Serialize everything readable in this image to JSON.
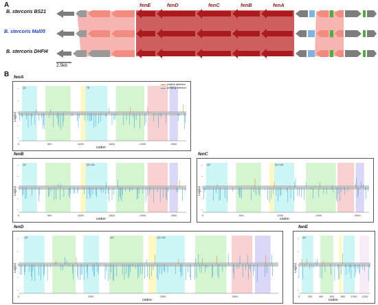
{
  "panels": {
    "a": "A",
    "b": "B"
  },
  "strains": [
    {
      "name": "B. stercoris BS21",
      "color": "#111111"
    },
    {
      "name": "B. stercoris Mal05",
      "color": "#1f3fd6"
    },
    {
      "name": "B. stercoris DHFI4",
      "color": "#111111"
    }
  ],
  "genes": [
    "fenE",
    "fenD",
    "fenC",
    "fenB",
    "fenA"
  ],
  "scale_bar": "2.5kb",
  "colors": {
    "fen": "#b11f24",
    "flank_pink": "#f28b82",
    "grey": "#8c8c8c",
    "blue": "#7fb2e5",
    "green": "#4caf3a",
    "positive": "#e8781a",
    "purifying": "#2f9fd8"
  },
  "plots": [
    {
      "title": "fenA",
      "ylabel": "Log(ω)",
      "xlabel": "codon",
      "xticks": [
        "0",
        "500",
        "1000",
        "1500",
        "2000",
        "2500"
      ],
      "xmax": 2700,
      "domains": [
        "Q1",
        "TE"
      ],
      "legend": [
        "positive selection",
        "purifying selection"
      ]
    },
    {
      "title": "fenB",
      "ylabel": "Log(ω)",
      "xlabel": "codon",
      "xticks": [
        "0",
        "500",
        "1000",
        "1500",
        "2000",
        "2500"
      ],
      "xmax": 2700,
      "domains": [
        "Q1",
        "Q1-UA"
      ]
    },
    {
      "title": "fenC",
      "ylabel": "Log(ω)",
      "xlabel": "codon",
      "xticks": [
        "0",
        "500",
        "1000",
        "1500",
        "2000"
      ],
      "xmax": 2150,
      "domains": [
        "Q1",
        "Q1-UA"
      ]
    },
    {
      "title": "fenD",
      "ylabel": "Log(ω)",
      "xlabel": "codon",
      "xticks": [
        "0",
        "1000",
        "2000",
        "3000"
      ],
      "xmax": 3600,
      "domains": [
        "Q1",
        "Q2",
        "Q1-UA"
      ]
    },
    {
      "title": "fenE",
      "ylabel": "Log(ω)",
      "xlabel": "codon",
      "xticks": [
        "0",
        "200",
        "400",
        "600",
        "800",
        "1000",
        "1200"
      ],
      "xmax": 1300,
      "domains": [
        "Q1"
      ]
    }
  ]
}
